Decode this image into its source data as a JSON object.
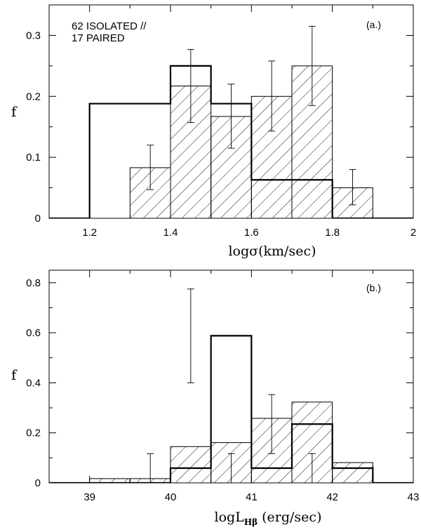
{
  "chart_data": [
    {
      "type": "bar",
      "panel_label": "(a.)",
      "annotation_lines": [
        "62 ISOLATED //",
        "17 PAIRED"
      ],
      "ylabel": "f",
      "xlabel": "logσ(km/sec)",
      "xlim": [
        1.1,
        2.0
      ],
      "ylim": [
        0,
        0.35
      ],
      "xticks": [
        {
          "value": 1.2,
          "label": "1.2"
        },
        {
          "value": 1.4,
          "label": "1.4"
        },
        {
          "value": 1.6,
          "label": "1.6"
        },
        {
          "value": 1.8,
          "label": "1.8"
        },
        {
          "value": 2.0,
          "label": "2"
        }
      ],
      "xminor": [
        1.1,
        1.3,
        1.5,
        1.7,
        1.9
      ],
      "yticks": [
        {
          "value": 0,
          "label": "0"
        },
        {
          "value": 0.1,
          "label": "0.1"
        },
        {
          "value": 0.2,
          "label": "0.2"
        },
        {
          "value": 0.3,
          "label": "0.3"
        }
      ],
      "yminor": [
        0.05,
        0.15,
        0.25
      ],
      "series": [
        {
          "style": "step",
          "bin_edges": [
            1.1,
            1.2,
            1.3,
            1.4,
            1.5,
            1.6,
            1.7,
            1.8,
            1.9,
            2.0
          ],
          "values": [
            0,
            0.188,
            0.188,
            0.25,
            0.188,
            0.063,
            0.063,
            0,
            0
          ]
        },
        {
          "style": "hatched",
          "bins": [
            {
              "x0": 1.3,
              "x1": 1.4,
              "value": 0.083,
              "err": [
                0.047,
                0.12
              ]
            },
            {
              "x0": 1.4,
              "x1": 1.5,
              "value": 0.217,
              "err": [
                0.157,
                0.277
              ]
            },
            {
              "x0": 1.5,
              "x1": 1.6,
              "value": 0.167,
              "err": [
                0.115,
                0.22
              ]
            },
            {
              "x0": 1.6,
              "x1": 1.7,
              "value": 0.2,
              "err": [
                0.143,
                0.258
              ]
            },
            {
              "x0": 1.7,
              "x1": 1.8,
              "value": 0.25,
              "err": [
                0.185,
                0.315
              ]
            },
            {
              "x0": 1.8,
              "x1": 1.9,
              "value": 0.05,
              "err": [
                0.022,
                0.08
              ]
            }
          ]
        }
      ]
    },
    {
      "type": "bar",
      "panel_label": "(b.)",
      "ylabel": "f",
      "xlabel": "logL",
      "xlabel_sub": "Hβ",
      "xlabel_unit": "(erg/sec)",
      "xlim": [
        38.5,
        43.0
      ],
      "ylim": [
        0,
        0.85
      ],
      "xticks": [
        {
          "value": 39,
          "label": "39"
        },
        {
          "value": 40,
          "label": "40"
        },
        {
          "value": 41,
          "label": "41"
        },
        {
          "value": 42,
          "label": "42"
        },
        {
          "value": 43,
          "label": "43"
        }
      ],
      "xminor": [
        38.5,
        39.5,
        40.5,
        41.5,
        42.5
      ],
      "yticks": [
        {
          "value": 0,
          "label": "0"
        },
        {
          "value": 0.2,
          "label": "0.2"
        },
        {
          "value": 0.4,
          "label": "0.4"
        },
        {
          "value": 0.6,
          "label": "0.6"
        },
        {
          "value": 0.8,
          "label": "0.8"
        }
      ],
      "yminor": [
        0.1,
        0.3,
        0.5,
        0.7
      ],
      "series": [
        {
          "style": "step",
          "bin_edges": [
            38.5,
            39.0,
            39.5,
            40.0,
            40.5,
            41.0,
            41.5,
            42.0,
            42.5,
            43.0
          ],
          "values": [
            0,
            0,
            0,
            0.059,
            0.588,
            0.059,
            0.235,
            0.059,
            0
          ]
        },
        {
          "style": "hatched",
          "bins": [
            {
              "x0": 39.0,
              "x1": 39.5,
              "value": 0.017,
              "err": null
            },
            {
              "x0": 39.5,
              "x1": 40.0,
              "value": 0.017,
              "err": [
                0.0,
                0.117
              ]
            },
            {
              "x0": 40.0,
              "x1": 40.5,
              "value": 0.145,
              "err": null
            },
            {
              "x0": 40.5,
              "x1": 41.0,
              "value": 0.161,
              "err": [
                0.0,
                0.117
              ]
            },
            {
              "x0": 41.0,
              "x1": 41.5,
              "value": 0.258,
              "err": null
            },
            {
              "x0": 41.5,
              "x1": 42.0,
              "value": 0.323,
              "err": [
                0.0,
                0.117
              ]
            },
            {
              "x0": 42.0,
              "x1": 42.5,
              "value": 0.081,
              "err": null
            }
          ]
        },
        {
          "style": "errorbars",
          "points": [
            {
              "x": 40.25,
              "lo": 0.4,
              "hi": 0.775
            },
            {
              "x": 41.25,
              "lo": 0.117,
              "hi": 0.353
            }
          ]
        }
      ]
    }
  ]
}
